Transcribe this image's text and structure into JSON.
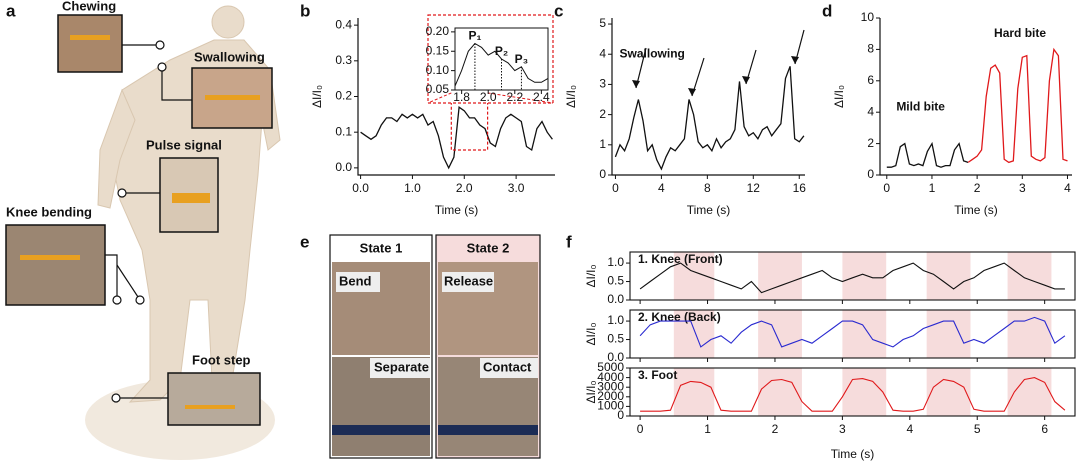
{
  "panel_a": {
    "label": "a",
    "callouts": [
      "Chewing",
      "Swallowing",
      "Pulse signal",
      "Knee bending",
      "Foot step"
    ]
  },
  "panel_e": {
    "label": "e",
    "columns": [
      {
        "title": "State 1",
        "top": "Bend",
        "bottom": "Separate"
      },
      {
        "title": "State 2",
        "top": "Release",
        "bottom": "Contact"
      }
    ]
  },
  "chart_data": [
    {
      "type": "line",
      "panel": "b",
      "xlabel": "Time (s)",
      "ylabel": "ΔI/I₀",
      "xlim": [
        -0.05,
        3.75
      ],
      "ylim": [
        -0.02,
        0.42
      ],
      "xticks": [
        {
          "value": 0,
          "label": "0.0"
        },
        {
          "value": 1,
          "label": "1.0"
        },
        {
          "value": 2,
          "label": "2.0"
        },
        {
          "value": 3,
          "label": "3.0"
        }
      ],
      "yticks": [
        {
          "value": 0,
          "label": "0.0"
        },
        0.1,
        0.2,
        0.3,
        0.4
      ],
      "x": [
        0,
        0.1,
        0.2,
        0.3,
        0.4,
        0.5,
        0.6,
        0.7,
        0.8,
        0.9,
        1,
        1.1,
        1.2,
        1.3,
        1.4,
        1.5,
        1.6,
        1.7,
        1.8,
        1.9,
        2,
        2.1,
        2.2,
        2.3,
        2.4,
        2.5,
        2.6,
        2.7,
        2.8,
        2.9,
        3,
        3.1,
        3.2,
        3.3,
        3.4,
        3.5,
        3.6,
        3.7
      ],
      "series": [
        {
          "color": "#111111",
          "values": [
            0.1,
            0.09,
            0.08,
            0.09,
            0.12,
            0.14,
            0.14,
            0.13,
            0.15,
            0.14,
            0.15,
            0.14,
            0.15,
            0.12,
            0.13,
            0.09,
            0.03,
            0.0,
            0.03,
            0.17,
            0.16,
            0.14,
            0.14,
            0.12,
            0.11,
            0.07,
            0.06,
            0.11,
            0.14,
            0.15,
            0.14,
            0.13,
            0.06,
            0.05,
            0.11,
            0.13,
            0.1,
            0.08
          ]
        }
      ],
      "inset": {
        "xlim": [
          1.75,
          2.45
        ],
        "ylim": [
          0.05,
          0.21
        ],
        "xticks": [
          1.8,
          {
            "value": 2,
            "label": "2.0"
          },
          2.2,
          2.4
        ],
        "yticks": [
          0.05,
          {
            "value": 0.1,
            "label": "0.10"
          },
          0.15,
          {
            "value": 0.2,
            "label": "0.20"
          }
        ],
        "x": [
          1.75,
          1.8,
          1.85,
          1.9,
          1.95,
          2,
          2.05,
          2.1,
          2.15,
          2.2,
          2.25,
          2.3,
          2.35,
          2.4,
          2.45
        ],
        "series": [
          {
            "color": "#111111",
            "values": [
              0.06,
              0.1,
              0.15,
              0.17,
              0.16,
              0.14,
              0.15,
              0.13,
              0.12,
              0.1,
              0.11,
              0.08,
              0.07,
              0.07,
              0.08
            ]
          }
        ],
        "annotations": [
          {
            "text": "P₁",
            "x": 1.9,
            "y": 0.17
          },
          {
            "text": "P₂",
            "x": 2.1,
            "y": 0.13
          },
          {
            "text": "P₃",
            "x": 2.25,
            "y": 0.11
          }
        ]
      }
    },
    {
      "type": "line",
      "panel": "c",
      "xlabel": "Time (s)",
      "ylabel": "ΔI/I₀",
      "xlim": [
        -0.3,
        16.5
      ],
      "ylim": [
        0,
        5.2
      ],
      "xticks": [
        0,
        4,
        8,
        12,
        16
      ],
      "yticks": [
        0,
        1,
        2,
        3,
        4,
        5
      ],
      "x": [
        0,
        0.4,
        0.8,
        1.2,
        1.6,
        2,
        2.4,
        2.8,
        3.2,
        3.6,
        4,
        4.4,
        4.8,
        5.2,
        5.6,
        6,
        6.4,
        6.8,
        7.2,
        7.6,
        8,
        8.4,
        8.8,
        9.2,
        9.6,
        10,
        10.4,
        10.8,
        11.2,
        11.6,
        12,
        12.4,
        12.8,
        13.2,
        13.6,
        14,
        14.4,
        14.8,
        15.2,
        15.6,
        16,
        16.4
      ],
      "series": [
        {
          "color": "#111111",
          "values": [
            0.6,
            1.0,
            0.8,
            1.2,
            1.9,
            2.5,
            1.8,
            0.8,
            1.0,
            0.5,
            0.2,
            0.6,
            0.9,
            0.8,
            1.0,
            1.2,
            2.5,
            2.0,
            1.1,
            0.9,
            1.0,
            0.8,
            1.2,
            0.9,
            1.1,
            1.2,
            1.5,
            3.1,
            1.6,
            1.3,
            1.4,
            1.2,
            1.5,
            1.6,
            1.3,
            1.5,
            1.7,
            3.2,
            3.6,
            1.2,
            1.1,
            1.3
          ]
        }
      ],
      "annotations": [
        {
          "text": "Swallowing",
          "x": 3.2,
          "y": 4.0
        }
      ]
    },
    {
      "type": "line",
      "panel": "d",
      "xlabel": "Time (s)",
      "ylabel": "ΔI/I₀",
      "xlim": [
        -0.15,
        4.1
      ],
      "ylim": [
        0,
        10
      ],
      "xticks": [
        0,
        1,
        2,
        3,
        4
      ],
      "yticks": [
        0,
        2,
        4,
        6,
        8,
        10
      ],
      "x": [
        0,
        0.1,
        0.2,
        0.3,
        0.4,
        0.5,
        0.6,
        0.7,
        0.8,
        0.9,
        1,
        1.1,
        1.2,
        1.3,
        1.4,
        1.5,
        1.6,
        1.7,
        1.8,
        1.9,
        2,
        2.1,
        2.2,
        2.3,
        2.4,
        2.5,
        2.6,
        2.7,
        2.8,
        2.9,
        3,
        3.1,
        3.2,
        3.3,
        3.4,
        3.5,
        3.6,
        3.7,
        3.8,
        3.9,
        4
      ],
      "series": [
        {
          "color": "#111111",
          "values": [
            0.5,
            0.5,
            0.6,
            1.8,
            2.0,
            0.7,
            0.6,
            0.7,
            0.6,
            1.5,
            2.0,
            0.6,
            0.5,
            0.6,
            0.6,
            1.6,
            2.0,
            0.9,
            0.8,
            null,
            null,
            null,
            null,
            null,
            null,
            null,
            null,
            null,
            null,
            null,
            null,
            null,
            null,
            null,
            null,
            null,
            null,
            null,
            null,
            null,
            null
          ]
        },
        {
          "color": "#e0191b",
          "values": [
            null,
            null,
            null,
            null,
            null,
            null,
            null,
            null,
            null,
            null,
            null,
            null,
            null,
            null,
            null,
            null,
            null,
            null,
            0.8,
            1.0,
            1.2,
            1.6,
            5.0,
            6.8,
            7.0,
            6.5,
            1.0,
            0.8,
            0.9,
            5.5,
            7.5,
            7.6,
            1.2,
            1.0,
            0.9,
            1.1,
            6.0,
            8.0,
            7.6,
            1.0,
            0.9
          ]
        }
      ],
      "annotations": [
        {
          "text": "Mild bite",
          "x": 0.75,
          "y": 4.3
        },
        {
          "text": "Hard bite",
          "x": 2.95,
          "y": 9.0
        }
      ]
    },
    {
      "type": "stacked-line",
      "panel": "f",
      "xlabel": "Time (s)",
      "xlim": [
        -0.15,
        6.45
      ],
      "xticks": [
        0,
        1,
        2,
        3,
        4,
        5,
        6
      ],
      "shaded_regions": [
        [
          0.5,
          1.1
        ],
        [
          1.75,
          2.4
        ],
        [
          3.0,
          3.65
        ],
        [
          4.25,
          4.9
        ],
        [
          5.45,
          6.1
        ]
      ],
      "x": [
        0,
        0.15,
        0.3,
        0.45,
        0.6,
        0.75,
        0.9,
        1.05,
        1.2,
        1.35,
        1.5,
        1.65,
        1.8,
        1.95,
        2.1,
        2.25,
        2.4,
        2.55,
        2.7,
        2.85,
        3,
        3.15,
        3.3,
        3.45,
        3.6,
        3.75,
        3.9,
        4.05,
        4.2,
        4.35,
        4.5,
        4.65,
        4.8,
        4.95,
        5.1,
        5.25,
        5.4,
        5.55,
        5.7,
        5.85,
        6,
        6.15,
        6.3
      ],
      "subplots": [
        {
          "title": "1. Knee (Front)",
          "ylabel": "ΔI/I₀",
          "ylim": [
            0,
            1.3
          ],
          "yticks": [
            {
              "value": 0,
              "label": "0.0"
            },
            0.5,
            {
              "value": 1,
              "label": "1.0"
            }
          ],
          "series": [
            {
              "color": "#111111",
              "values": [
                0.3,
                0.5,
                0.7,
                0.9,
                1.0,
                0.8,
                0.7,
                0.6,
                0.5,
                0.4,
                0.3,
                0.5,
                0.2,
                0.3,
                0.4,
                0.5,
                0.6,
                0.7,
                0.8,
                0.6,
                0.5,
                0.6,
                0.7,
                0.6,
                0.6,
                0.8,
                0.9,
                1.0,
                0.8,
                0.7,
                0.5,
                0.3,
                0.5,
                0.6,
                0.8,
                0.9,
                1.0,
                0.8,
                0.6,
                0.5,
                0.4,
                0.3,
                0.3
              ]
            }
          ]
        },
        {
          "title": "2. Knee (Back)",
          "ylabel": "ΔI/I₀",
          "ylim": [
            0,
            1.3
          ],
          "yticks": [
            {
              "value": 0,
              "label": "0.0"
            },
            0.5,
            {
              "value": 1,
              "label": "1.0"
            }
          ],
          "series": [
            {
              "color": "#2a2ad0",
              "values": [
                0.6,
                0.9,
                1.0,
                1.0,
                1.0,
                1.0,
                0.3,
                0.5,
                0.6,
                0.4,
                0.7,
                0.9,
                1.0,
                0.9,
                0.3,
                0.4,
                0.5,
                0.4,
                0.6,
                0.8,
                1.0,
                1.0,
                0.9,
                0.5,
                0.4,
                0.3,
                0.5,
                0.6,
                0.8,
                0.9,
                1.0,
                1.0,
                0.4,
                0.5,
                0.4,
                0.6,
                0.8,
                1.0,
                1.0,
                1.1,
                1.0,
                0.4,
                0.6
              ]
            }
          ]
        },
        {
          "title": "3. Foot",
          "ylabel": "ΔI/I₀",
          "ylim": [
            0,
            5000
          ],
          "yticks": [
            0,
            1000,
            2000,
            3000,
            4000,
            5000
          ],
          "series": [
            {
              "color": "#e0191b",
              "values": [
                500,
                500,
                500,
                600,
                3200,
                3600,
                3500,
                3000,
                600,
                500,
                500,
                500,
                2800,
                3700,
                3800,
                3500,
                1500,
                500,
                500,
                500,
                2000,
                3800,
                3900,
                3600,
                2500,
                600,
                500,
                500,
                700,
                3000,
                3800,
                3600,
                3000,
                700,
                500,
                500,
                500,
                2500,
                3800,
                4000,
                3500,
                1500,
                600
              ]
            }
          ]
        }
      ]
    }
  ]
}
